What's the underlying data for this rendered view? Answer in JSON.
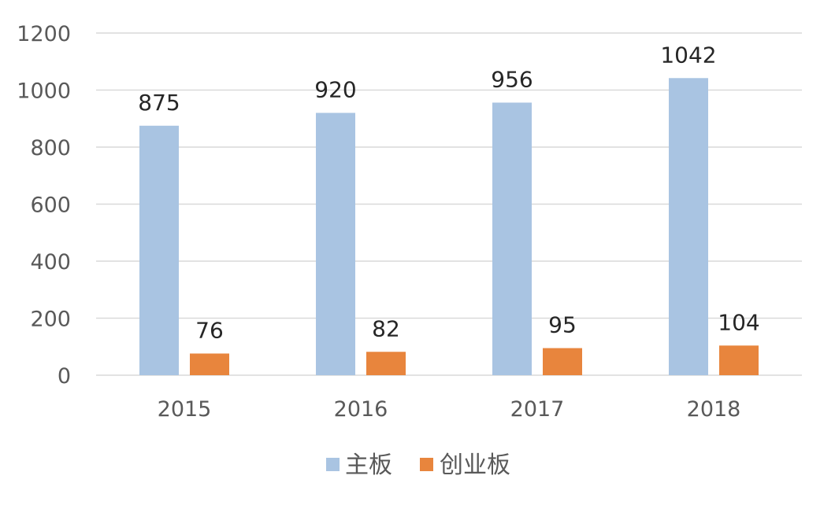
{
  "chart_data": {
    "type": "bar",
    "categories": [
      "2015",
      "2016",
      "2017",
      "2018"
    ],
    "series": [
      {
        "name": "主板",
        "values": [
          875,
          920,
          956,
          1042
        ],
        "color": "#a9c4e2"
      },
      {
        "name": "创业板",
        "values": [
          76,
          82,
          95,
          104
        ],
        "color": "#e8853d"
      }
    ],
    "ylim": [
      0,
      1200
    ],
    "yticks": [
      0,
      200,
      400,
      600,
      800,
      1000,
      1200
    ],
    "grid": true,
    "legend": "bottom",
    "gridColor": "#d9d9d9",
    "title": "",
    "xlabel": "",
    "ylabel": ""
  }
}
